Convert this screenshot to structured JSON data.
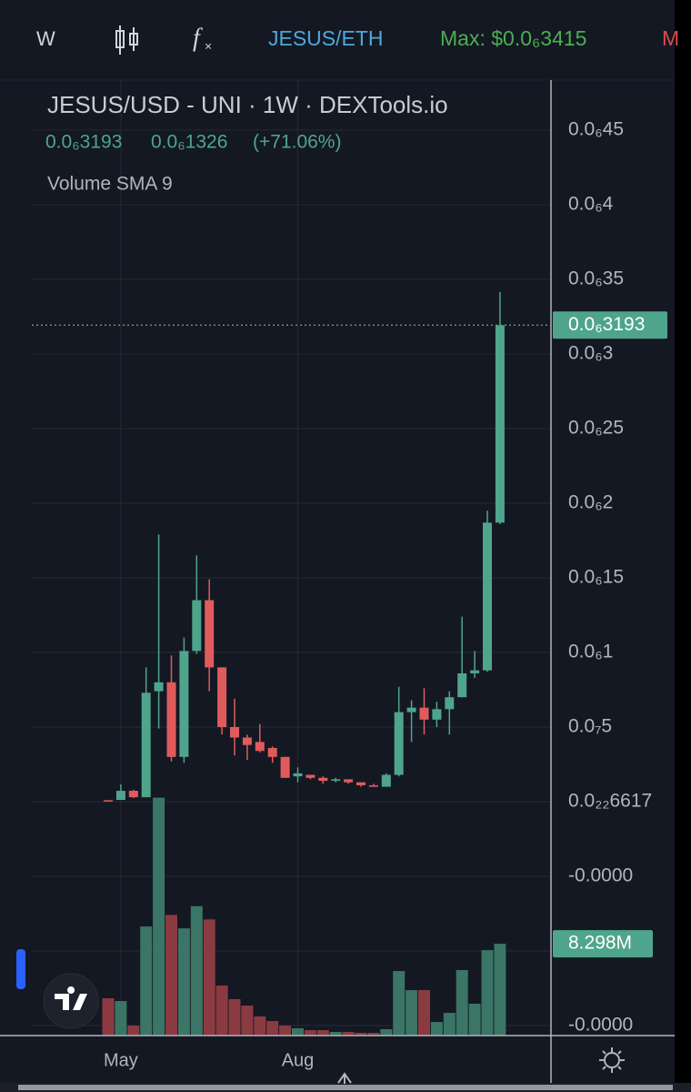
{
  "toolbar": {
    "interval": "W",
    "pair": "JESUS/ETH",
    "max": {
      "value": 3.415e-07,
      "label": "Max: $0.0₆3415"
    },
    "cut": "M"
  },
  "chart_data": {
    "type": "candlestick",
    "title": "JESUS/USD - UNI · 1W · DEXTools.io",
    "change": {
      "value": 1.326e-07,
      "label": "0.0₆1326"
    },
    "change_pct": {
      "value": 71.06,
      "label": "(+71.06%)"
    },
    "indicator": "Volume SMA 9",
    "categories": [
      null,
      "May",
      null,
      null,
      null,
      null,
      null,
      null,
      null,
      null,
      null,
      null,
      null,
      null,
      null,
      "Aug",
      null,
      null,
      null,
      null,
      null,
      null,
      null,
      null,
      null,
      null,
      null,
      null,
      null,
      null,
      null,
      null
    ],
    "open": [
      1e-09,
      1.2e-09,
      7.3e-09,
      3e-09,
      7.4e-08,
      8e-08,
      3e-08,
      1.01e-07,
      1.35e-07,
      9e-08,
      5e-08,
      4.3e-08,
      4e-08,
      3.6e-08,
      3e-08,
      1.7e-08,
      1.8e-08,
      1.6e-08,
      1.4e-08,
      1.5e-08,
      1.3e-08,
      1.1e-08,
      1e-08,
      1.8e-08,
      6e-08,
      6.3e-08,
      5.5e-08,
      6.2e-08,
      7e-08,
      8.6e-08,
      8.8e-08,
      1.87e-07
    ],
    "high": [
      1e-09,
      1.16e-08,
      8e-09,
      9e-08,
      1.79e-07,
      9.8e-08,
      1.1e-07,
      1.65e-07,
      1.49e-07,
      9e-08,
      6.9e-08,
      4.5e-08,
      5.2e-08,
      3.7e-08,
      3e-08,
      2.3e-08,
      1.8e-08,
      1.7e-08,
      1.6e-08,
      1.5e-08,
      1.3e-08,
      1.2e-08,
      1.9e-08,
      7.7e-08,
      6.8e-08,
      7.6e-08,
      6.7e-08,
      7.4e-08,
      1.24e-07,
      1.01e-07,
      1.95e-07,
      3.415e-07
    ],
    "low": [
      5e-10,
      1.2e-09,
      2.5e-09,
      3e-09,
      4.9e-08,
      2.7e-08,
      2.6e-08,
      9.9e-08,
      7.4e-08,
      4.5e-08,
      3.1e-08,
      2.8e-08,
      3.3e-08,
      2.6e-08,
      1.6e-08,
      1.3e-08,
      1.5e-08,
      1.2e-08,
      1.3e-08,
      1.2e-08,
      1e-08,
      1e-08,
      1e-08,
      1.7e-08,
      4e-08,
      4.5e-08,
      5e-08,
      4.5e-08,
      7e-08,
      8.3e-08,
      8.7e-08,
      1.86e-07
    ],
    "close": [
      8e-10,
      7.3e-09,
      3e-09,
      7.3e-08,
      8e-08,
      3e-08,
      1.01e-07,
      1.35e-07,
      9e-08,
      5e-08,
      4.3e-08,
      3.8e-08,
      3.4e-08,
      3e-08,
      1.6e-08,
      1.9e-08,
      1.6e-08,
      1.4e-08,
      1.5e-08,
      1.3e-08,
      1.1e-08,
      1e-08,
      1.8e-08,
      6e-08,
      6.3e-08,
      5.5e-08,
      6.2e-08,
      7e-08,
      8.6e-08,
      8.8e-08,
      1.87e-07,
      3.193e-07
    ],
    "close_labels": [
      null,
      null,
      null,
      null,
      null,
      null,
      null,
      null,
      null,
      null,
      null,
      null,
      null,
      null,
      null,
      null,
      null,
      null,
      null,
      null,
      null,
      null,
      null,
      null,
      null,
      null,
      null,
      null,
      null,
      null,
      null,
      "0.0₆3193"
    ],
    "up_color": "#4fa58c",
    "down_color": "#e05c5c",
    "volume_up_color": "#3a7566",
    "volume_down_color": "#8c3a42",
    "ylim": [
      -1.567e-07,
      4.835e-07
    ],
    "yticks": [
      {
        "value": 4.5e-07,
        "label": "0.0₆45"
      },
      {
        "value": 4e-07,
        "label": "0.0₆4"
      },
      {
        "value": 3.5e-07,
        "label": "0.0₆35"
      },
      {
        "value": 3e-07,
        "label": "0.0₆3"
      },
      {
        "value": 2.5e-07,
        "label": "0.0₆25"
      },
      {
        "value": 2e-07,
        "label": "0.0₆2"
      },
      {
        "value": 1.5e-07,
        "label": "0.0₆15"
      },
      {
        "value": 1e-07,
        "label": "0.0₆1"
      },
      {
        "value": 5e-08,
        "label": "0.0₇5"
      },
      {
        "value": 6.617e-23,
        "label": "0.0₂₂6617"
      },
      {
        "value": -5e-08,
        "label": "-0.0000"
      },
      {
        "value": -1e-07,
        "label": "-0.0000"
      },
      {
        "value": -1.5e-07,
        "label": "-0.0000"
      }
    ],
    "grid": true,
    "volume": {
      "values": [
        3370000,
        3120000,
        900000,
        9860000,
        21500000,
        10900000,
        9690000,
        11700000,
        10500000,
        4520000,
        3290000,
        2710000,
        1730000,
        1310000,
        900000,
        660000,
        490000,
        490000,
        330000,
        330000,
        250000,
        250000,
        580000,
        5830000,
        4110000,
        4110000,
        1230000,
        2050000,
        5920000,
        2880000,
        7720000,
        8298000
      ],
      "value_labels": [
        null,
        null,
        null,
        null,
        null,
        null,
        null,
        null,
        null,
        null,
        null,
        null,
        null,
        null,
        null,
        null,
        null,
        null,
        null,
        null,
        null,
        null,
        null,
        null,
        null,
        null,
        null,
        null,
        null,
        null,
        null,
        "8.298M"
      ],
      "ylim": [
        0,
        25000000
      ]
    }
  }
}
